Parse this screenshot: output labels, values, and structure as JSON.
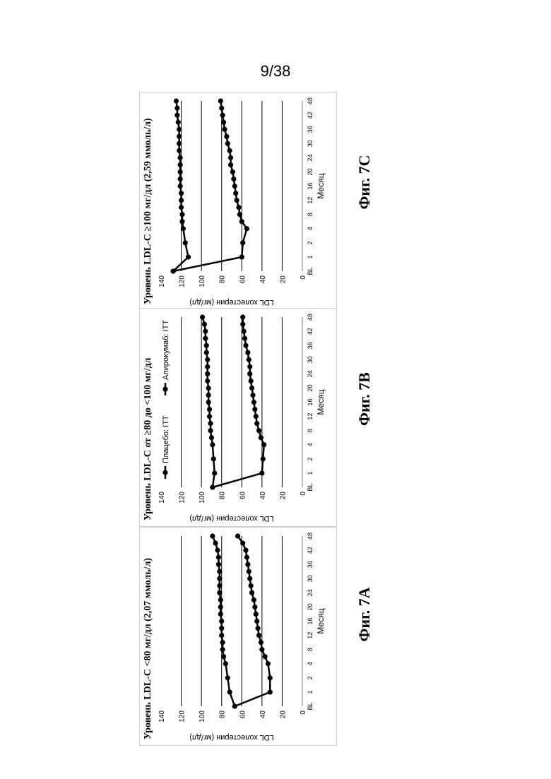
{
  "page_number": "9/38",
  "chart_data": [
    {
      "id": "7A",
      "type": "line",
      "figure_label": "Фиг. 7A",
      "title": "Уровень LDL-C <80 мг/дл (2,07 ммоль/л)",
      "xlabel": "Месяц",
      "ylabel": "LDL холестерин (мг/дл)",
      "ylim": [
        0,
        140
      ],
      "yticks": [
        "0",
        "20",
        "40",
        "60",
        "80",
        "100",
        "120",
        "140"
      ],
      "categories": [
        "BL",
        "1",
        "2",
        "4",
        "8",
        "12",
        "16",
        "20",
        "24",
        "30",
        "36",
        "42",
        "48"
      ],
      "grid": true,
      "legend": null,
      "series": [
        {
          "name": "Плацебо: ITT",
          "x": [
            0,
            1,
            2,
            3,
            3.5,
            4,
            4.5,
            5,
            5.5,
            6,
            6.5,
            7,
            7.5,
            8,
            8.5,
            9,
            9.5,
            10,
            10.5,
            11,
            11.5,
            12
          ],
          "values": [
            67,
            72,
            74,
            76,
            78,
            79,
            79,
            80,
            80,
            80,
            81,
            81,
            81,
            82,
            82,
            82,
            82,
            83,
            83,
            84,
            86,
            89
          ]
        },
        {
          "name": "Алирокумаб: ITT",
          "x": [
            0,
            1,
            2,
            3,
            3.5,
            4,
            4.5,
            5,
            5.5,
            6,
            6.5,
            7,
            7.5,
            8,
            8.5,
            9,
            9.5,
            10,
            10.5,
            11,
            11.5,
            12
          ],
          "values": [
            67,
            32,
            32,
            34,
            37,
            40,
            41,
            43,
            44,
            45,
            46,
            47,
            48,
            50,
            51,
            52,
            53,
            54,
            55,
            56,
            59,
            64
          ]
        }
      ]
    },
    {
      "id": "7B",
      "type": "line",
      "figure_label": "Фиг. 7B",
      "title": "Уровень LDL-C от ≥80 до <100 мг/дл",
      "xlabel": "Месяц",
      "ylabel": "LDL холестерин (мг/дл)",
      "ylim": [
        0,
        140
      ],
      "yticks": [
        "0",
        "20",
        "40",
        "60",
        "80",
        "100",
        "120",
        "140"
      ],
      "categories": [
        "BL",
        "1",
        "2",
        "4",
        "8",
        "12",
        "16",
        "20",
        "24",
        "30",
        "36",
        "42",
        "48"
      ],
      "grid": true,
      "legend": "top",
      "series": [
        {
          "name": "Плацебо: ITT",
          "x": [
            0,
            1,
            2,
            3,
            3.5,
            4,
            4.5,
            5,
            5.5,
            6,
            6.5,
            7,
            7.5,
            8,
            8.5,
            9,
            9.5,
            10,
            10.5,
            11,
            11.5,
            12
          ],
          "values": [
            89,
            87,
            88,
            89,
            90,
            91,
            91,
            92,
            92,
            93,
            93,
            93,
            94,
            94,
            94,
            94,
            95,
            95,
            96,
            96,
            97,
            99
          ]
        },
        {
          "name": "Алирокумаб: ITT",
          "x": [
            0,
            1,
            2,
            3,
            3.5,
            4,
            4.5,
            5,
            5.5,
            6,
            6.5,
            7,
            7.5,
            8,
            8.5,
            9,
            9.5,
            10,
            10.5,
            11,
            11.5,
            12
          ],
          "values": [
            89,
            40,
            39,
            38,
            41,
            43,
            45,
            46,
            47,
            48,
            49,
            50,
            51,
            52,
            52,
            53,
            54,
            56,
            57,
            58,
            59,
            59
          ]
        }
      ]
    },
    {
      "id": "7C",
      "type": "line",
      "figure_label": "Фиг. 7C",
      "title": "Уровень LDL-C ≥100 мг/дл (2,59 ммоль/л)",
      "xlabel": "Месяц",
      "ylabel": "LDL холестерин (мг/дл)",
      "ylim": [
        0,
        140
      ],
      "yticks": [
        "0",
        "20",
        "40",
        "60",
        "80",
        "100",
        "120",
        "140"
      ],
      "categories": [
        "BL",
        "1",
        "2",
        "4",
        "8",
        "12",
        "16",
        "20",
        "24",
        "30",
        "36",
        "42",
        "48"
      ],
      "grid": true,
      "legend": null,
      "series": [
        {
          "name": "Плацебо: ITT",
          "x": [
            0,
            1,
            2,
            3,
            3.5,
            4,
            4.5,
            5,
            5.5,
            6,
            6.5,
            7,
            7.5,
            8,
            8.5,
            9,
            9.5,
            10,
            10.5,
            11,
            11.5,
            12
          ],
          "values": [
            128,
            113,
            116,
            118,
            119,
            119,
            120,
            120,
            120,
            121,
            121,
            121,
            121,
            121,
            122,
            122,
            122,
            122,
            123,
            124,
            124,
            125
          ]
        },
        {
          "name": "Алирокумаб: ITT",
          "x": [
            0,
            1,
            2,
            3,
            3.5,
            4,
            4.5,
            5,
            5.5,
            6,
            6.5,
            7,
            7.5,
            8,
            8.5,
            9,
            9.5,
            10,
            10.5,
            11,
            11.5,
            12
          ],
          "values": [
            128,
            60,
            59,
            55,
            60,
            62,
            63,
            65,
            66,
            67,
            68,
            69,
            71,
            71,
            72,
            74,
            75,
            77,
            78,
            79,
            80,
            81
          ]
        }
      ]
    }
  ]
}
